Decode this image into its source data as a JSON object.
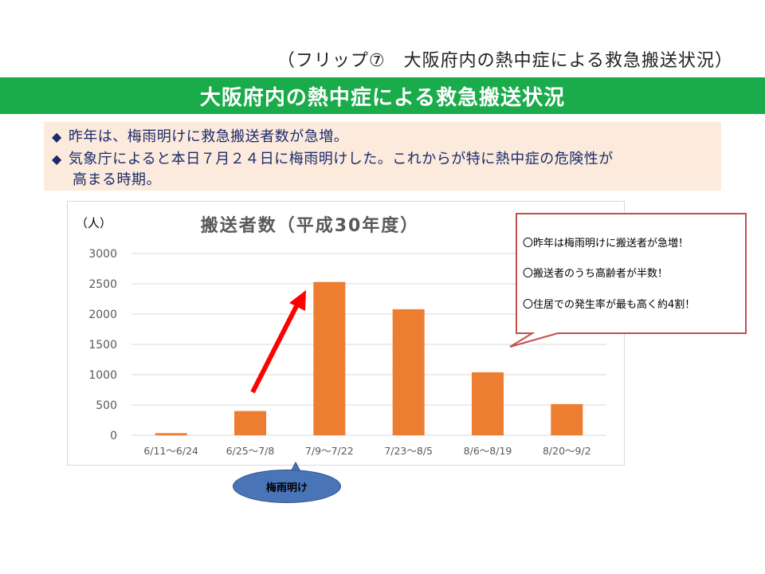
{
  "header": {
    "flip_caption": "（フリップ⑦　大阪府内の熱中症による救急搬送状況）",
    "banner_title": "大阪府内の熱中症による救急搬送状況"
  },
  "notes": {
    "bullet": "◆",
    "line1": "昨年は、梅雨明けに救急搬送者数が急増。",
    "line2": "気象庁によると本日７月２４日に梅雨明けした。これからが特に熱中症の危険性が",
    "line3": "高まる時期。"
  },
  "callout": {
    "line1": "〇昨年は梅雨明けに搬送者が急増！",
    "line2": "〇搬送者のうち高齢者が半数！",
    "line3": "〇住居での発生率が最も高く約4割！"
  },
  "tsuyu_label": "梅雨明け",
  "colors": {
    "banner": "#1aab4b",
    "bar": "#ed7d31",
    "arrow": "#ff0000",
    "callout_border": "#c0504d",
    "ellipse": "#4a74b8"
  },
  "chart_data": {
    "type": "bar",
    "title": "搬送者数（平成30年度）",
    "unit_label": "（人）",
    "categories": [
      "6/11～6/24",
      "6/25～7/8",
      "7/9～7/22",
      "7/23～8/5",
      "8/6～8/19",
      "8/20～9/2"
    ],
    "values": [
      35,
      400,
      2530,
      2080,
      1040,
      515
    ],
    "yticks": [
      0,
      500,
      1000,
      1500,
      2000,
      2500,
      3000
    ],
    "ylim": [
      0,
      3000
    ],
    "grid": true,
    "legend": "none"
  }
}
